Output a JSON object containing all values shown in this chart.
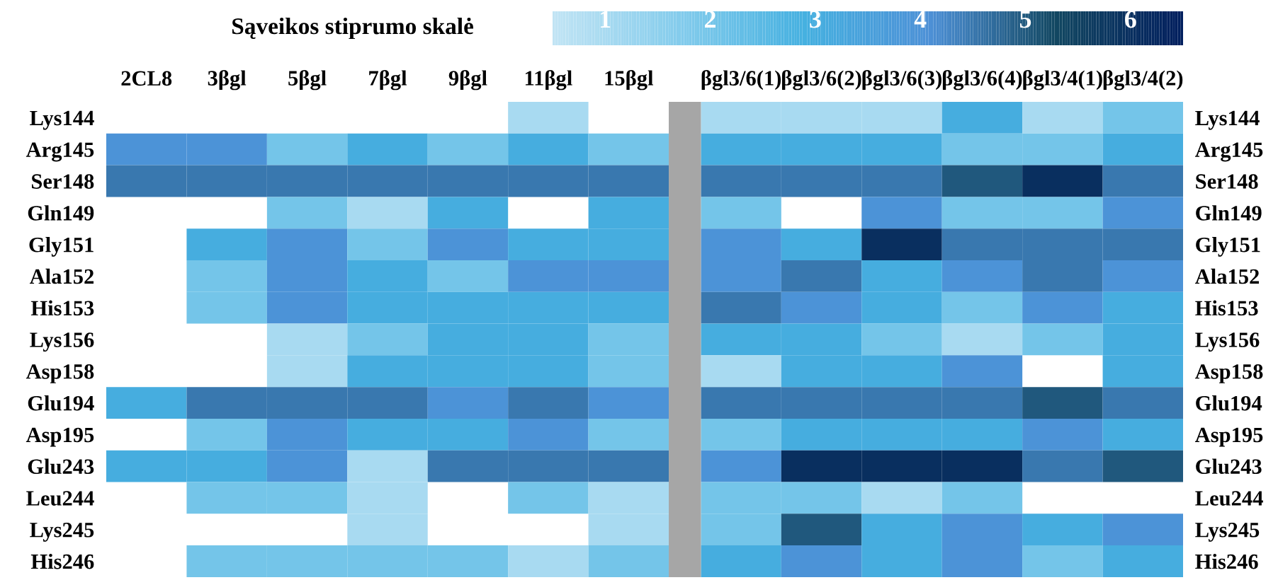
{
  "chart_data": {
    "type": "heatmap",
    "clabel": "Sąveikos stiprumo skalė",
    "clim": [
      0.5,
      6.5
    ],
    "cticks": [
      1,
      2,
      3,
      4,
      5,
      6
    ],
    "colors": [
      "#c1e4f4",
      "#84ccec",
      "#45b0e0",
      "#4d90d6",
      "#124761",
      "#021f5e"
    ],
    "categories": [
      "2CL8",
      "3βgl",
      "5βgl",
      "7βgl",
      "9βgl",
      "11βgl",
      "15βgl",
      null,
      "βgl3/6(1)",
      "βgl3/6(2)",
      "βgl3/6(3)",
      "βgl3/6(4)",
      "βgl3/4(1)",
      "βgl3/4(2)"
    ],
    "y_categories": [
      "Lys144",
      "Arg145",
      "Ser148",
      "Gln149",
      "Gly151",
      "Ala152",
      "His153",
      "Lys156",
      "Asp158",
      "Glu194",
      "Asp195",
      "Glu243",
      "Leu244",
      "Lys245",
      "His246"
    ],
    "y2_categories": [
      "Lys144",
      "Arg145",
      "Ser148",
      "Gln149",
      "Gly151",
      "Ala152",
      "His153",
      "Lys156",
      "Asp158",
      "Glu194",
      "Asp195",
      "Glu243",
      "Leu244",
      "Lys245",
      "His246"
    ],
    "cells": [
      [
        null,
        null,
        null,
        null,
        null,
        1,
        null,
        null,
        1,
        1,
        1,
        3,
        1,
        2
      ],
      [
        4,
        4,
        2,
        3,
        2,
        3,
        2,
        null,
        3,
        3,
        3,
        2,
        2,
        3
      ],
      [
        4.5,
        4.5,
        4.5,
        4.5,
        4.5,
        4.5,
        4.5,
        null,
        4.5,
        4.5,
        4.5,
        5,
        6,
        4.5
      ],
      [
        null,
        null,
        2,
        1,
        3,
        null,
        3,
        null,
        2,
        null,
        4,
        2,
        2,
        4
      ],
      [
        null,
        3,
        4,
        2,
        4,
        3,
        3,
        null,
        4,
        3,
        6,
        4.5,
        4.5,
        4.5
      ],
      [
        null,
        2,
        4,
        3,
        2,
        4,
        4,
        null,
        4,
        4.5,
        3,
        4,
        4.5,
        4
      ],
      [
        null,
        2,
        4,
        3,
        3,
        3,
        3,
        null,
        4.5,
        4,
        3,
        2,
        4,
        3
      ],
      [
        null,
        null,
        1,
        2,
        3,
        3,
        2,
        null,
        3,
        3,
        2,
        1,
        2,
        3
      ],
      [
        null,
        null,
        1,
        3,
        3,
        3,
        2,
        null,
        1,
        3,
        3,
        4,
        null,
        3
      ],
      [
        3,
        4.5,
        4.5,
        4.5,
        4,
        4.5,
        4,
        null,
        4.5,
        4.5,
        4.5,
        4.5,
        5,
        4.5
      ],
      [
        null,
        2,
        4,
        3,
        3,
        4,
        2,
        null,
        2,
        3,
        3,
        3,
        4,
        3
      ],
      [
        3,
        3,
        4,
        1,
        4.5,
        4.5,
        4.5,
        null,
        4,
        6,
        6,
        6,
        4.5,
        5
      ],
      [
        null,
        2,
        2,
        1,
        null,
        2,
        1,
        null,
        2,
        2,
        1,
        2,
        null,
        null
      ],
      [
        null,
        null,
        null,
        1,
        null,
        null,
        1,
        null,
        2,
        5,
        3,
        4,
        3,
        4
      ],
      [
        null,
        2,
        2,
        2,
        2,
        1,
        2,
        null,
        3,
        4,
        3,
        4,
        2,
        3
      ]
    ]
  }
}
